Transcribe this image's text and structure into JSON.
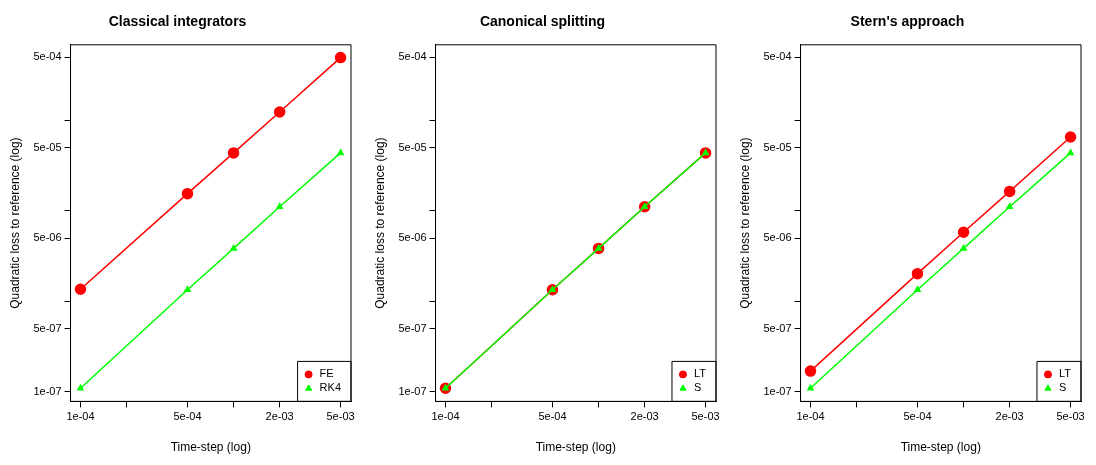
{
  "chart_data": [
    {
      "type": "line",
      "title": "Classical integrators",
      "xlabel": "Time-step (log)",
      "ylabel": "Quadratic loss to reference (log)",
      "log": "xy",
      "grid": false,
      "legend": "bottom right",
      "x": [
        0.0001,
        0.0005,
        0.001,
        0.002,
        0.005
      ],
      "xlim": [
        8.61e-05,
        0.00585
      ],
      "ylim": [
        7.81e-08,
        0.000686
      ],
      "xticks": [
        {
          "value": 0.0001,
          "label": "1e-04"
        },
        {
          "value": 0.0002,
          "label": null
        },
        {
          "value": 0.0005,
          "label": "5e-04"
        },
        {
          "value": 0.001,
          "label": null
        },
        {
          "value": 0.002,
          "label": "2e-03"
        },
        {
          "value": 0.005,
          "label": "5e-03"
        }
      ],
      "yticks": [
        {
          "value": 1e-07,
          "label": "1e-07"
        },
        {
          "value": 5e-07,
          "label": "5e-07"
        },
        {
          "value": 1e-06,
          "label": null
        },
        {
          "value": 5e-06,
          "label": "5e-06"
        },
        {
          "value": 1e-05,
          "label": null
        },
        {
          "value": 5e-05,
          "label": "5e-05"
        },
        {
          "value": 0.0001,
          "label": null
        },
        {
          "value": 0.0005,
          "label": "5e-04"
        }
      ],
      "series": [
        {
          "name": "FE",
          "color": "#ff0000",
          "marker": "circle",
          "values": [
            1.36e-06,
            1.55e-05,
            4.37e-05,
            0.000124,
            0.000495
          ]
        },
        {
          "name": "RK4",
          "color": "#00ff00",
          "marker": "triangle",
          "values": [
            1.09e-07,
            1.34e-06,
            3.84e-06,
            1.11e-05,
            4.37e-05
          ]
        }
      ]
    },
    {
      "type": "line",
      "title": "Canonical splitting",
      "xlabel": "Time-step (log)",
      "ylabel": "Quadratic loss to reference (log)",
      "log": "xy",
      "grid": false,
      "legend": "bottom right",
      "x": [
        0.0001,
        0.0005,
        0.001,
        0.002,
        0.005
      ],
      "xlim": [
        8.61e-05,
        0.00585
      ],
      "ylim": [
        7.81e-08,
        0.000686
      ],
      "xticks": [
        {
          "value": 0.0001,
          "label": "1e-04"
        },
        {
          "value": 0.0002,
          "label": null
        },
        {
          "value": 0.0005,
          "label": "5e-04"
        },
        {
          "value": 0.001,
          "label": null
        },
        {
          "value": 0.002,
          "label": "2e-03"
        },
        {
          "value": 0.005,
          "label": "5e-03"
        }
      ],
      "yticks": [
        {
          "value": 1e-07,
          "label": "1e-07"
        },
        {
          "value": 5e-07,
          "label": "5e-07"
        },
        {
          "value": 1e-06,
          "label": null
        },
        {
          "value": 5e-06,
          "label": "5e-06"
        },
        {
          "value": 1e-05,
          "label": null
        },
        {
          "value": 5e-05,
          "label": "5e-05"
        },
        {
          "value": 0.0001,
          "label": null
        },
        {
          "value": 0.0005,
          "label": "5e-04"
        }
      ],
      "series": [
        {
          "name": "LT",
          "color": "#ff0000",
          "marker": "circle",
          "values": [
            1.09e-07,
            1.34e-06,
            3.84e-06,
            1.11e-05,
            4.37e-05
          ]
        },
        {
          "name": "S",
          "color": "#00ff00",
          "marker": "triangle",
          "values": [
            1.09e-07,
            1.34e-06,
            3.84e-06,
            1.11e-05,
            4.37e-05
          ]
        }
      ]
    },
    {
      "type": "line",
      "title": "Stern's approach",
      "xlabel": "Time-step (log)",
      "ylabel": "Quadratic loss to reference (log)",
      "log": "xy",
      "grid": false,
      "legend": "bottom right",
      "x": [
        0.0001,
        0.0005,
        0.001,
        0.002,
        0.005
      ],
      "xlim": [
        8.61e-05,
        0.00585
      ],
      "ylim": [
        7.81e-08,
        0.000686
      ],
      "xticks": [
        {
          "value": 0.0001,
          "label": "1e-04"
        },
        {
          "value": 0.0002,
          "label": null
        },
        {
          "value": 0.0005,
          "label": "5e-04"
        },
        {
          "value": 0.001,
          "label": null
        },
        {
          "value": 0.002,
          "label": "2e-03"
        },
        {
          "value": 0.005,
          "label": "5e-03"
        }
      ],
      "yticks": [
        {
          "value": 1e-07,
          "label": "1e-07"
        },
        {
          "value": 5e-07,
          "label": "5e-07"
        },
        {
          "value": 1e-06,
          "label": null
        },
        {
          "value": 5e-06,
          "label": "5e-06"
        },
        {
          "value": 1e-05,
          "label": null
        },
        {
          "value": 5e-05,
          "label": "5e-05"
        },
        {
          "value": 0.0001,
          "label": null
        },
        {
          "value": 0.0005,
          "label": "5e-04"
        }
      ],
      "series": [
        {
          "name": "LT",
          "color": "#ff0000",
          "marker": "circle",
          "values": [
            1.69e-07,
            2.02e-06,
            5.8e-06,
            1.64e-05,
            6.56e-05
          ]
        },
        {
          "name": "S",
          "color": "#00ff00",
          "marker": "triangle",
          "values": [
            1.09e-07,
            1.34e-06,
            3.84e-06,
            1.11e-05,
            4.37e-05
          ]
        }
      ]
    }
  ]
}
